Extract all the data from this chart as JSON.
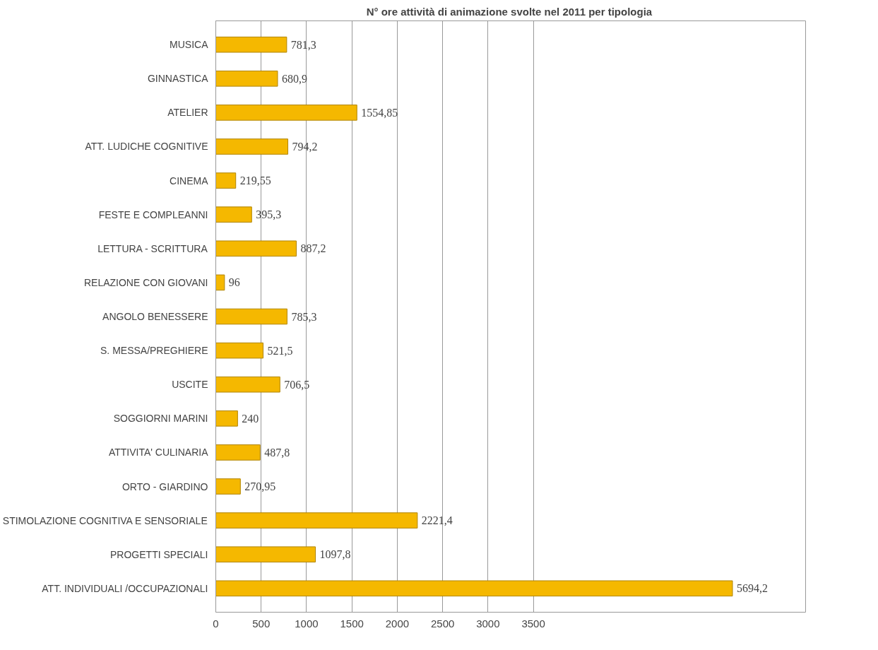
{
  "chart_data": {
    "type": "bar",
    "orientation": "horizontal",
    "title": "N° ore attività di animazione  svolte nel 2011 per tipologia",
    "categories": [
      "MUSICA",
      "GINNASTICA",
      "ATELIER",
      "ATT. LUDICHE COGNITIVE",
      "CINEMA",
      "FESTE E COMPLEANNI",
      "LETTURA - SCRITTURA",
      "RELAZIONE CON GIOVANI",
      "ANGOLO BENESSERE",
      "S. MESSA/PREGHIERE",
      "USCITE",
      "SOGGIORNI MARINI",
      "ATTIVITA' CULINARIA",
      "ORTO - GIARDINO",
      "STIMOLAZIONE COGNITIVA E SENSORIALE",
      "PROGETTI SPECIALI",
      "ATT. INDIVIDUALI /OCCUPAZIONALI"
    ],
    "values": [
      781.3,
      680.9,
      1554.85,
      794.2,
      219.55,
      395.3,
      887.2,
      96,
      785.3,
      521.5,
      706.5,
      240,
      487.8,
      270.95,
      2221.4,
      1097.8,
      5694.2
    ],
    "value_labels": [
      "781,3",
      "680,9",
      "1554,85",
      "794,2",
      "219,55",
      "395,3",
      "887,2",
      "96",
      "785,3",
      "521,5",
      "706,5",
      "240",
      "487,8",
      "270,95",
      "2221,4",
      "1097,8",
      "5694,2"
    ],
    "color": "#f5b800",
    "xlim": [
      0,
      6500
    ],
    "xticks": [
      0,
      500,
      1000,
      1500,
      2000,
      2500,
      3000,
      3500
    ],
    "grid": "x"
  }
}
